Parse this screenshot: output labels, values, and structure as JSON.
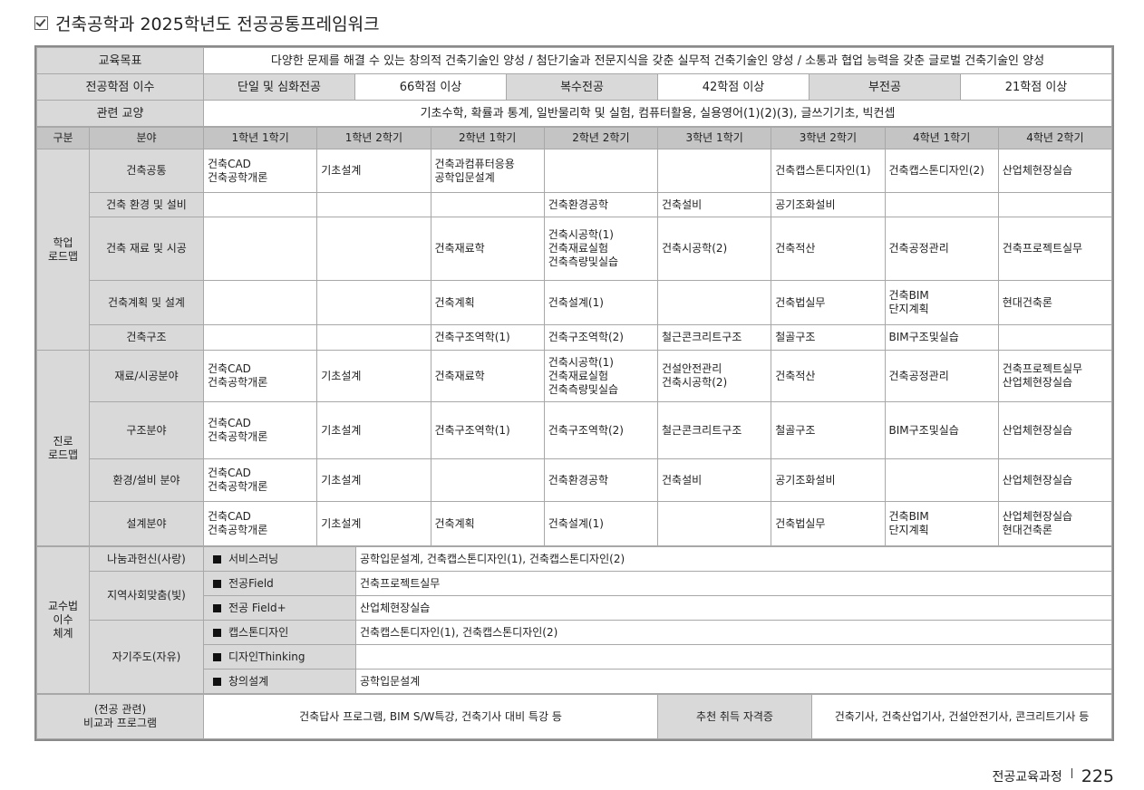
{
  "title": "건축공학과 2025학년도 전공공통프레임워크",
  "goal": {
    "label": "교육목표",
    "text": "다양한 문제를 해결 수 있는 창의적 건축기술인 양성 / 첨단기술과 전문지식을 갖춘 실무적 건축기술인 양성 / 소통과 협업 능력을 갖춘 글로벌 건축기술인 양성"
  },
  "credits": {
    "label": "전공학점 이수",
    "items": [
      [
        "단일 및 심화전공",
        "66학점 이상"
      ],
      [
        "복수전공",
        "42학점 이상"
      ],
      [
        "부전공",
        "21학점 이상"
      ]
    ]
  },
  "liberal": {
    "label": "관련 교양",
    "text": "기초수학, 확률과 통계, 일반물리학 및 실험, 컴퓨터활용, 실용영어(1)(2)(3), 글쓰기기초, 빅컨셉"
  },
  "headers": [
    "구분",
    "분야",
    "1학년 1학기",
    "1학년 2학기",
    "2학년 1학기",
    "2학년 2학기",
    "3학년 1학기",
    "3학년 2학기",
    "4학년 1학기",
    "4학년 2학기"
  ],
  "groups": [
    {
      "label": "학업\n로드맵",
      "rows": [
        {
          "field": "건축공통",
          "cells": [
            "건축CAD\n건축공학개론",
            "기초설계",
            "건축과컴퓨터응용\n공학입문설계",
            "",
            "",
            "건축캡스톤디자인(1)",
            "건축캡스톤디자인(2)",
            "산업체현장실습"
          ]
        },
        {
          "field": "건축 환경 및 설비",
          "cells": [
            "",
            "",
            "",
            "건축환경공학",
            "건축설비",
            "공기조화설비",
            "",
            ""
          ]
        },
        {
          "field": "건축 재료 및 시공",
          "cells": [
            "",
            "",
            "건축재료학",
            "건축시공학(1)\n건축재료실험\n건축측량및실습",
            "건축시공학(2)",
            "건축적산",
            "건축공정관리",
            "건축프로젝트실무"
          ]
        },
        {
          "field": "건축계획 및 설계",
          "cells": [
            "",
            "",
            "건축계획",
            "건축설계(1)",
            "",
            "건축법실무",
            "건축BIM\n단지계획",
            "현대건축론"
          ]
        },
        {
          "field": "건축구조",
          "cells": [
            "",
            "",
            "건축구조역학(1)",
            "건축구조역학(2)",
            "철근콘크리트구조",
            "철골구조",
            "BIM구조및실습",
            ""
          ]
        }
      ]
    },
    {
      "label": "진로\n로드맵",
      "rows": [
        {
          "field": "재료/시공분야",
          "cells": [
            "건축CAD\n건축공학개론",
            "기초설계",
            "건축재료학",
            "건축시공학(1)\n건축재료실험\n건축측량및실습",
            "건설안전관리\n건축시공학(2)",
            "건축적산",
            "건축공정관리",
            "건축프로젝트실무\n산업체현장실습"
          ]
        },
        {
          "field": "구조분야",
          "cells": [
            "건축CAD\n건축공학개론",
            "기초설계",
            "건축구조역학(1)",
            "건축구조역학(2)",
            "철근콘크리트구조",
            "철골구조",
            "BIM구조및실습",
            "산업체현장실습"
          ]
        },
        {
          "field": "환경/설비 분야",
          "cells": [
            "건축CAD\n건축공학개론",
            "기초설계",
            "",
            "건축환경공학",
            "건축설비",
            "공기조화설비",
            "",
            "산업체현장실습"
          ]
        },
        {
          "field": "설계분야",
          "cells": [
            "건축CAD\n건축공학개론",
            "기초설계",
            "건축계획",
            "건축설계(1)",
            "",
            "건축법실무",
            "건축BIM\n단지계획",
            "산업체현장실습\n현대건축론"
          ]
        }
      ]
    }
  ],
  "teaching": {
    "label": "교수법\n이수\n체계",
    "groups": [
      {
        "name": "나눔과헌신(사랑)",
        "items": [
          [
            "서비스러닝",
            "공학입문설계, 건축캡스톤디자인(1), 건축캡스톤디자인(2)"
          ]
        ]
      },
      {
        "name": "지역사회맞춤(빛)",
        "items": [
          [
            "전공Field",
            "건축프로젝트실무"
          ],
          [
            "전공 Field+",
            "산업체현장실습"
          ]
        ]
      },
      {
        "name": "자기주도(자유)",
        "items": [
          [
            "캡스톤디자인",
            "건축캡스톤디자인(1), 건축캡스톤디자인(2)"
          ],
          [
            "디자인Thinking",
            ""
          ],
          [
            "창의설계",
            "공학입문설계"
          ]
        ]
      }
    ]
  },
  "extra": {
    "label": "(전공 관련)\n비교과 프로그램",
    "text": "건축답사 프로그램, BIM S/W특강, 건축기사 대비 특강 등",
    "cert_label": "추천 취득 자격증",
    "cert_text": "건축기사, 건축산업기사, 건설안전기사, 콘크리트기사 등"
  },
  "footer": {
    "section": "전공교육과정",
    "page": "225"
  }
}
